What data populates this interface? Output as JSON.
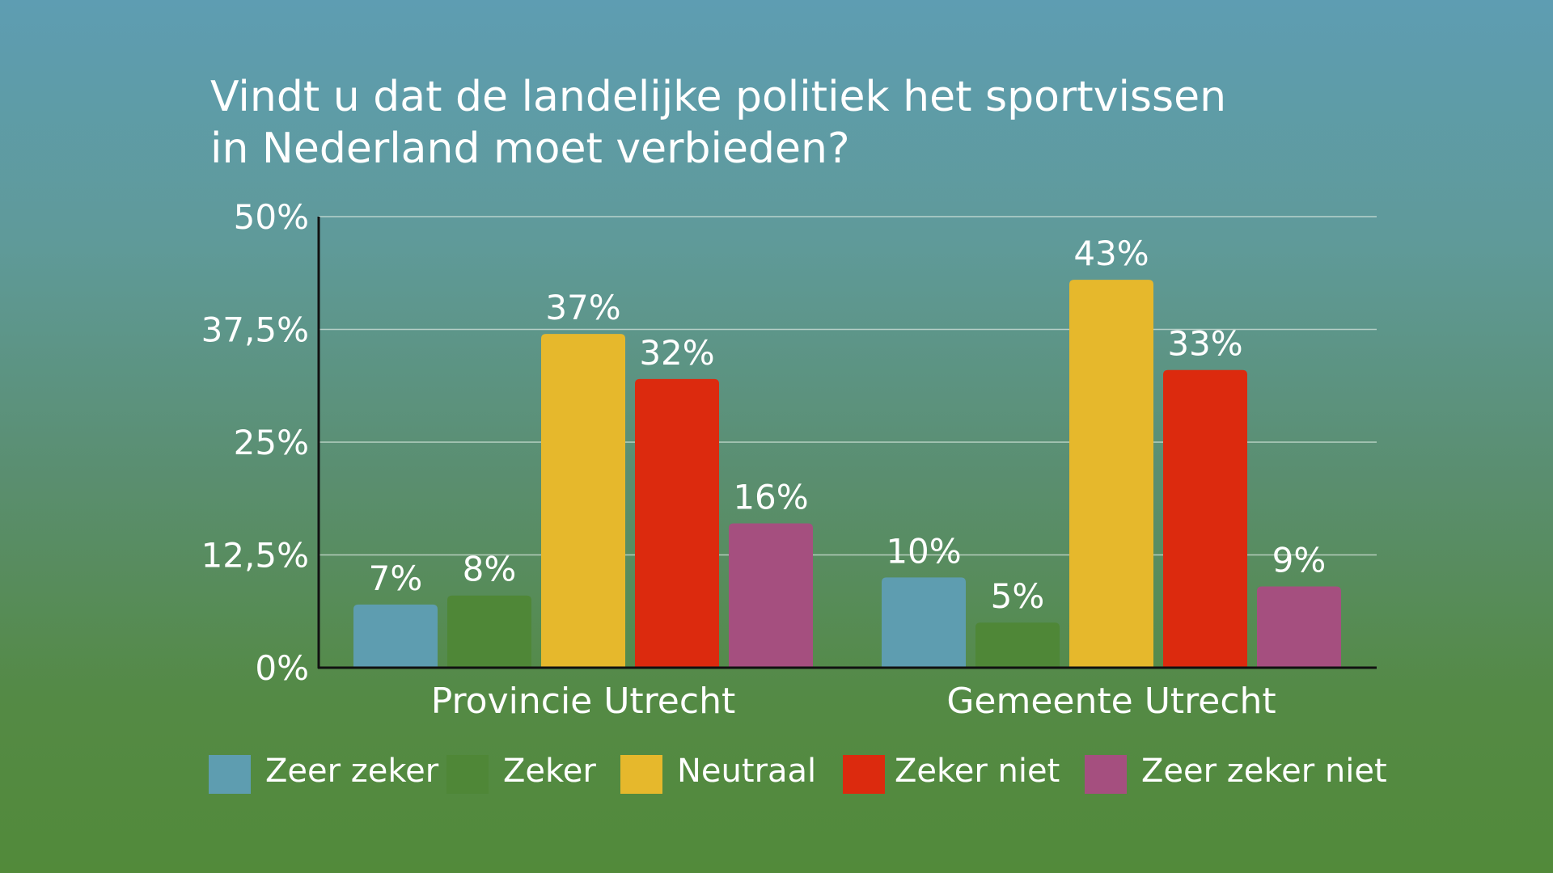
{
  "chart_data": {
    "type": "bar",
    "title": "Vindt u dat de landelijke politiek het sportvissen in Nederland moet verbieden?",
    "title_lines": [
      "Vindt u dat de landelijke politiek het sportvissen",
      "in Nederland moet verbieden?"
    ],
    "categories": [
      "Provincie Utrecht",
      "Gemeente Utrecht"
    ],
    "series": [
      {
        "name": "Zeer zeker",
        "color": "#5e9db0",
        "values": [
          7,
          10
        ],
        "labels": [
          "7%",
          "10%"
        ]
      },
      {
        "name": "Zeker",
        "color": "#4f8737",
        "values": [
          8,
          5
        ],
        "labels": [
          "8%",
          "5%"
        ]
      },
      {
        "name": "Neutraal",
        "color": "#e6b82c",
        "values": [
          37,
          43
        ],
        "labels": [
          "37%",
          "43%"
        ]
      },
      {
        "name": "Zeker niet",
        "color": "#dc2a0e",
        "values": [
          32,
          33
        ],
        "labels": [
          "32%",
          "33%"
        ]
      },
      {
        "name": "Zeer zeker niet",
        "color": "#a54f7f",
        "values": [
          16,
          9
        ],
        "labels": [
          "16%",
          "9%"
        ]
      }
    ],
    "yticks": [
      0,
      12.5,
      25,
      37.5,
      50
    ],
    "ytick_labels": [
      "0%",
      "12,5%",
      "25%",
      "37,5%",
      "50%"
    ],
    "ylim": [
      0,
      50
    ],
    "xlabel": "",
    "ylabel": "",
    "grid": true,
    "legend_position": "bottom"
  }
}
